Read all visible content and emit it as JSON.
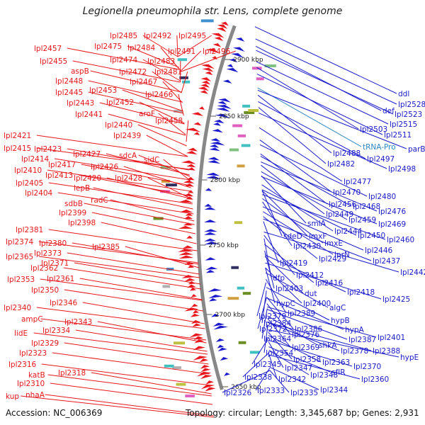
{
  "title": "Legionella pneumophila str. Lens, complete genome",
  "footer": {
    "accession_label": "Accession:",
    "accession": "NC_006369",
    "topology": "Topology: circular",
    "length": "Length: 3,345,687 bp",
    "genes": "Genes: 2,931"
  },
  "colors": {
    "forward": "#e8171d",
    "reverse": "#1a1acc",
    "trna": "#2e86c1",
    "backbone": "#888888",
    "tick": "#2e8b2e"
  },
  "ticks": [
    {
      "label": "2900 kbp",
      "kbp": 2900
    },
    {
      "label": "2850 kbp",
      "kbp": 2850
    },
    {
      "label": "2800 kbp",
      "kbp": 2800
    },
    {
      "label": "2750 kbp",
      "kbp": 2750
    },
    {
      "label": "2700 kbp",
      "kbp": 2700
    },
    {
      "label": "2650 kbp",
      "kbp": 2650
    }
  ],
  "left_labels": [
    "lpl2485",
    "lpl2492",
    "lpl2495",
    "lpl2457",
    "lpl2475",
    "lpl2484",
    "lpl2491",
    "lpl2496",
    "lpl2455",
    "lpl2474",
    "lpl2483",
    "aspB",
    "lpl2472",
    "lpl2481",
    "lpl2448",
    "lpl2467",
    "lpl2445",
    "lpl2453",
    "lpl2466",
    "lpl2443",
    "lpl2452",
    "aroF",
    "lpl2441",
    "lpl2458",
    "lpl2440",
    "lpl2439",
    "lpl2421",
    "lpl2415",
    "lpl2423",
    "lpl2427",
    "lpl2426",
    "sdcA",
    "sidC",
    "lpl2414",
    "lpl2417",
    "lpl2410",
    "lpl2413",
    "lpl2420",
    "lpl2428",
    "lpl2405",
    "lepB",
    "lpl2404",
    "radC",
    "sdbB",
    "lpl2399",
    "lpl2398",
    "lpl2381",
    "lpl2374",
    "lpl2380",
    "lpl2385",
    "lpl2373",
    "lpl2365",
    "lpl2371",
    "lpl2362",
    "lpl2361",
    "lpl2353",
    "lpl2350",
    "lpl2346",
    "lpl2340",
    "lpl2343",
    "ampC",
    "lidE",
    "lpl2334",
    "lpl2329",
    "lpl2323",
    "lpl2316",
    "lpl2318",
    "katB",
    "lpl2310",
    "nhaA",
    "kup"
  ],
  "right_labels": [
    "ddl",
    "lpl2528",
    "def",
    "lpl2523",
    "lpl2515",
    "lpl2503",
    "lpl2511",
    "tRNA-Pro",
    "parB",
    "lpl2488",
    "lpl2497",
    "lpl2482",
    "lpl2498",
    "lpl2477",
    "lpl2470",
    "lpl2480",
    "lpl2456",
    "lpl2468",
    "lpl2476",
    "lpl2449",
    "lpl2459",
    "lpl2469",
    "smlA",
    "lpl2444",
    "lpl2450",
    "sdeD",
    "lmxF",
    "lpl2460",
    "lpl2430",
    "lmxE",
    "lpl2446",
    "lprN",
    "lpl2429",
    "lpl2437",
    "lpl2419",
    "lpl2442",
    "dfp",
    "lpl2412",
    "lpl2416",
    "lpl2403",
    "dut",
    "lpl2418",
    "lpl2425",
    "hypC",
    "lpl2400",
    "algC",
    "lpl2379",
    "lpl2389",
    "hypB",
    "lpl2384",
    "lpl2386",
    "hypA",
    "lpl2372",
    "lpl2376",
    "lpl2387",
    "lpl2401",
    "lpl2364",
    "shkA",
    "lpl2378",
    "lpl2388",
    "lpl2369",
    "lpl2354",
    "lpl2358",
    "lpl2363",
    "hypE",
    "lpl2345",
    "lpl2347",
    "lpl2370",
    "sfIR",
    "lpl2360",
    "lpl2338",
    "lpl2342",
    "lpl2348",
    "lpl2344",
    "lpl2333",
    "lpl2335",
    "lpl2326"
  ]
}
